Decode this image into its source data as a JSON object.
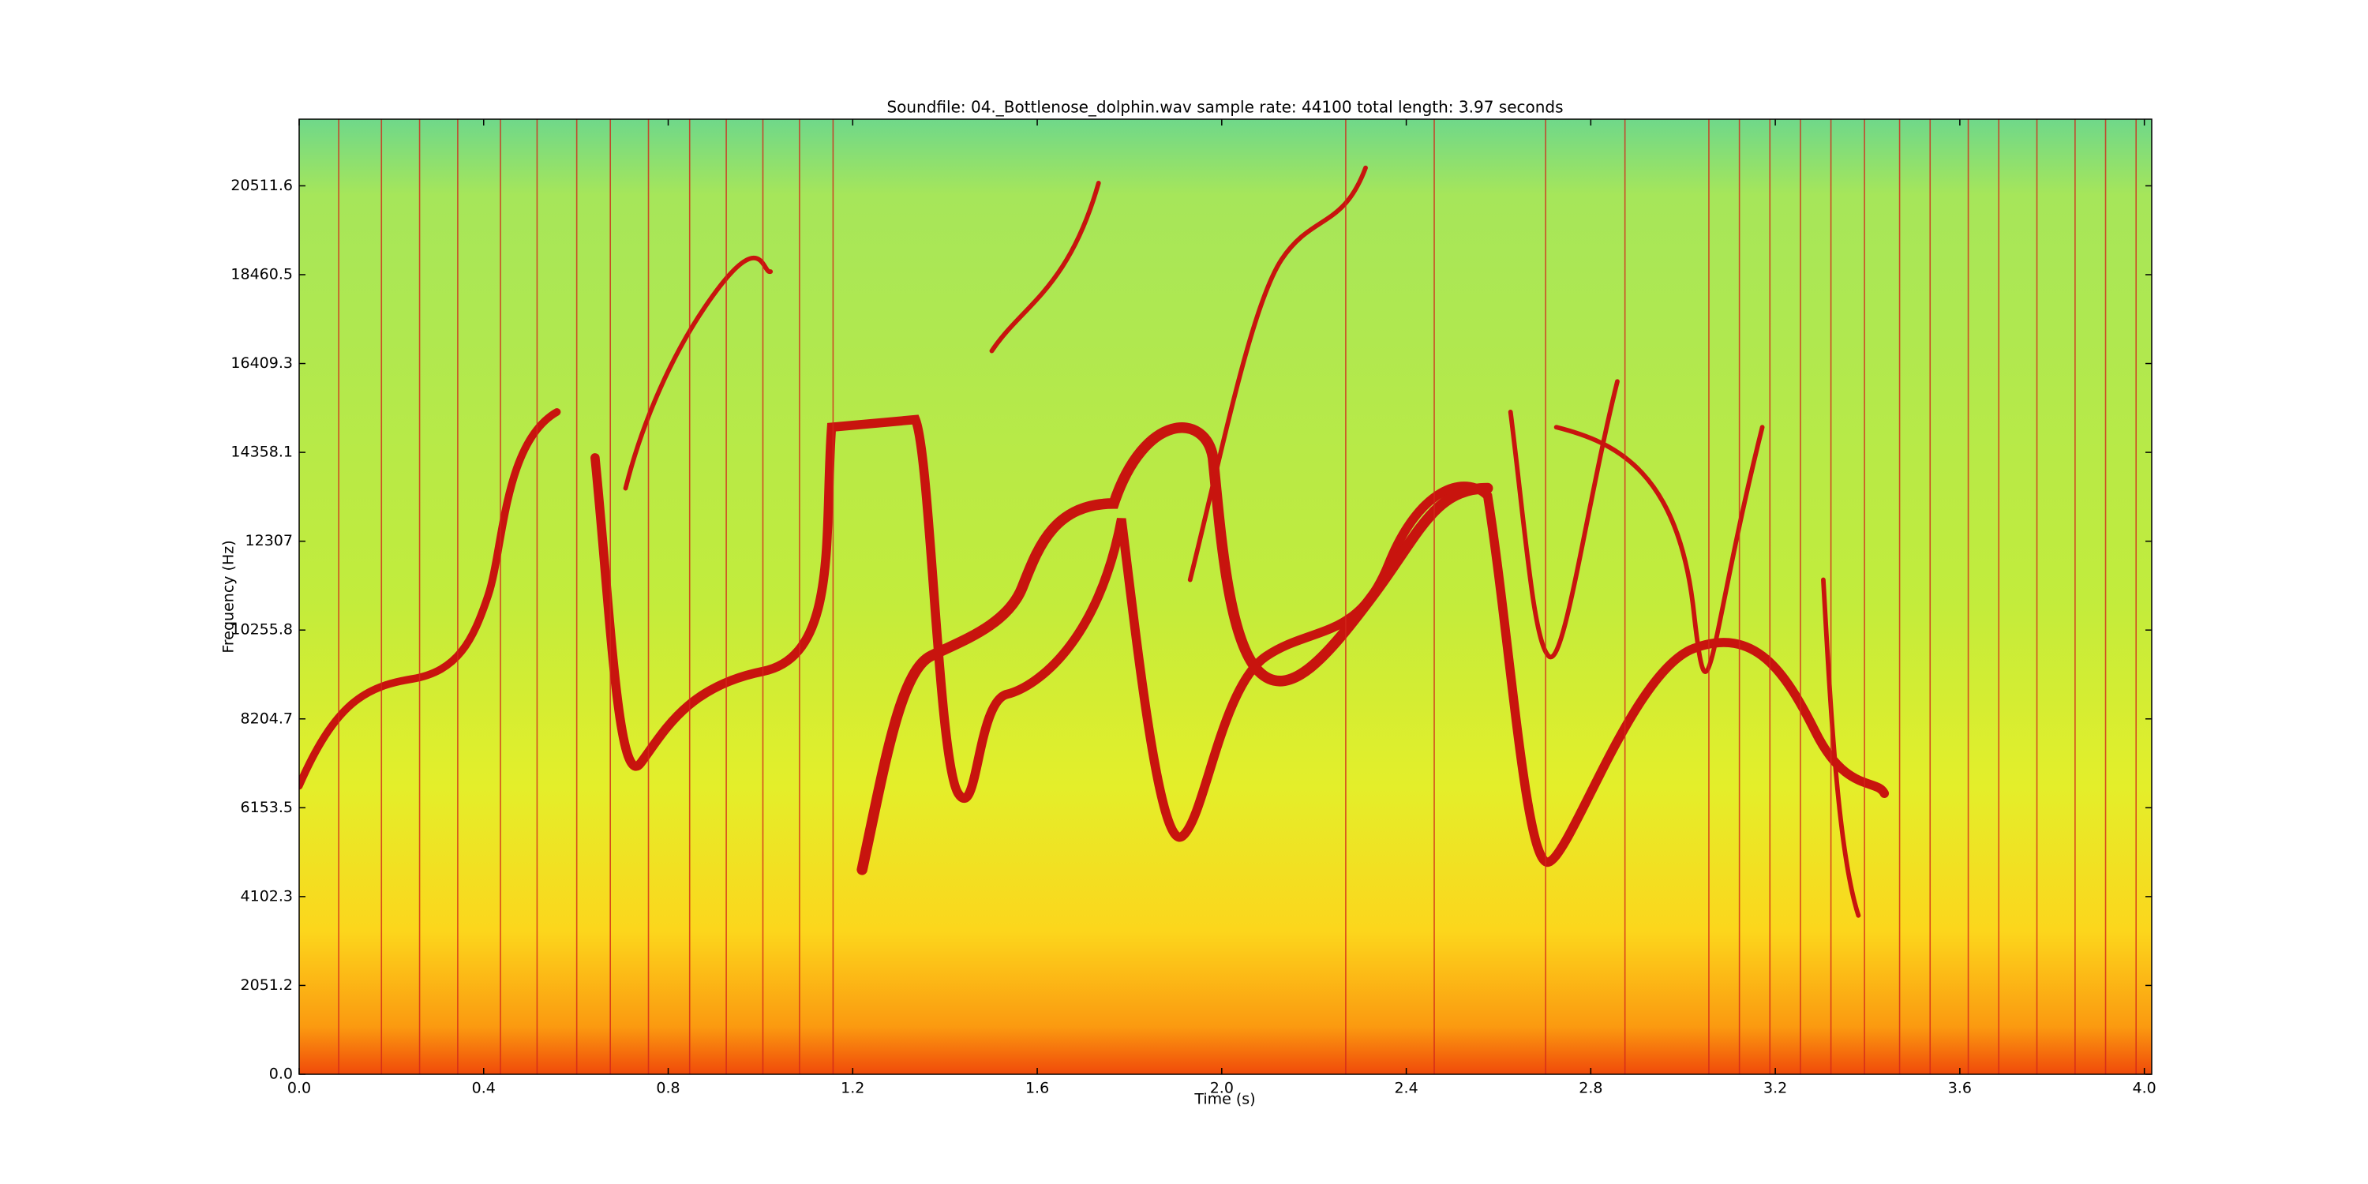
{
  "chart_data": {
    "type": "spectrogram",
    "title": "Soundfile: 04._Bottlenose_dolphin.wav sample rate: 44100 total length: 3.97 seconds",
    "x_label": "Time (s)",
    "y_label": "Frequency (Hz)",
    "xlim": [
      0,
      4.016
    ],
    "ylim": [
      0,
      22050
    ],
    "xticks": [
      {
        "value": 0,
        "label": "0.0"
      },
      0.4,
      0.8,
      1.2,
      1.6,
      {
        "value": 2,
        "label": "2.0"
      },
      2.4,
      2.8,
      3.2,
      3.6,
      {
        "value": 4,
        "label": "4.0"
      }
    ],
    "yticks": [
      {
        "value": 0,
        "label": "0.0"
      },
      2051.2,
      4102.3,
      6153.5,
      8204.7,
      10255.8,
      12307.0,
      14358.1,
      16409.3,
      18460.5,
      20511.6
    ],
    "grid": false
  }
}
